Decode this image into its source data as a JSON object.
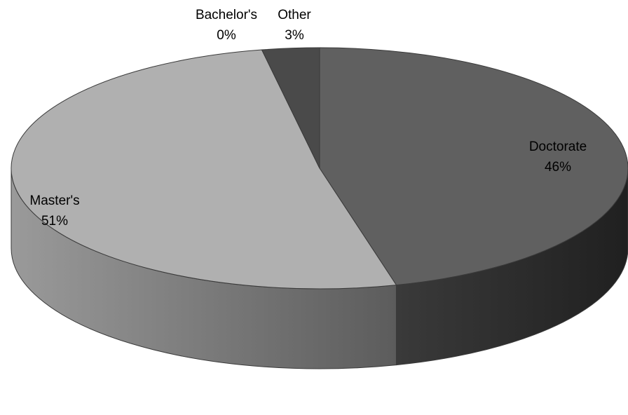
{
  "chart_data": {
    "type": "pie",
    "style": "3d",
    "title": "",
    "slices": [
      {
        "name": "Doctorate",
        "value": 46,
        "label": "Doctorate",
        "pct_label": "46%",
        "color": "#606060"
      },
      {
        "name": "Master's",
        "value": 51,
        "label": "Master's",
        "pct_label": "51%",
        "color": "#b0b0b0"
      },
      {
        "name": "Bachelor's",
        "value": 0,
        "label": "Bachelor's",
        "pct_label": "0%",
        "color": "#7a7a7a"
      },
      {
        "name": "Other",
        "value": 3,
        "label": "Other",
        "pct_label": "3%",
        "color": "#4a4a4a"
      }
    ],
    "legend": "none"
  }
}
